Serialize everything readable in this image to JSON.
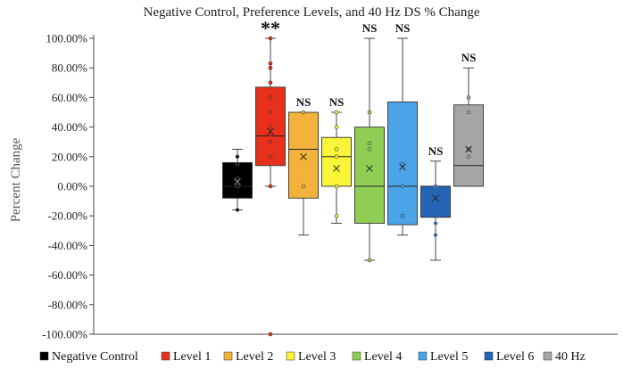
{
  "chart_data": {
    "type": "box",
    "title": "Negative Control, Preference Levels, and 40 Hz DS % Change",
    "ylabel": "Percent Change",
    "xlabel": "",
    "ylim": [
      -100,
      100
    ],
    "yticks": [
      100,
      80,
      60,
      40,
      20,
      0,
      -20,
      -40,
      -60,
      -80,
      -100
    ],
    "ytick_labels": [
      "100.00%",
      "80.00%",
      "60.00%",
      "40.00%",
      "20.00%",
      "0.00%",
      "-20.00%",
      "-40.00%",
      "-60.00%",
      "-80.00%",
      "-100.00%"
    ],
    "legend_position": "bottom",
    "gridlines": false,
    "series": [
      {
        "name": "Negative Control",
        "color": "#000000",
        "whisker_low": -16,
        "q1": -8,
        "median": 0,
        "q3": 16,
        "whisker_high": 25,
        "mean": 3,
        "points": [
          20,
          15,
          5,
          0,
          -16
        ],
        "significance": ""
      },
      {
        "name": "Level 1",
        "color": "#e8301c",
        "whisker_low": 0,
        "q1": 14,
        "median": 34,
        "q3": 67,
        "whisker_high": 100,
        "mean": 37,
        "points": [
          100,
          83,
          80,
          70,
          60,
          50,
          40,
          35,
          30,
          20,
          0,
          -100
        ],
        "significance": "**"
      },
      {
        "name": "Level 2",
        "color": "#f2b23c",
        "whisker_low": -33,
        "q1": -8,
        "median": 25,
        "q3": 50,
        "whisker_high": 50,
        "mean": 20,
        "points": [
          50,
          0
        ],
        "significance": "NS"
      },
      {
        "name": "Level 3",
        "color": "#fbf53a",
        "whisker_low": -25,
        "q1": 0,
        "median": 20,
        "q3": 33,
        "whisker_high": 50,
        "mean": 12,
        "points": [
          50,
          40,
          25,
          20,
          0,
          -20
        ],
        "significance": "NS"
      },
      {
        "name": "Level 4",
        "color": "#8fce55",
        "whisker_low": -50,
        "q1": -25,
        "median": 0,
        "q3": 40,
        "whisker_high": 100,
        "mean": 12,
        "points": [
          50,
          29,
          25,
          -50
        ],
        "significance": "NS"
      },
      {
        "name": "Level 5",
        "color": "#4ba4e8",
        "whisker_low": -33,
        "q1": -26,
        "median": 0,
        "q3": 57,
        "whisker_high": 100,
        "mean": 13,
        "points": [
          15,
          0,
          -20
        ],
        "significance": "NS"
      },
      {
        "name": "Level 6",
        "color": "#2565b5",
        "whisker_low": -50,
        "q1": -21,
        "median": 0,
        "q3": 0,
        "whisker_high": 17,
        "mean": -8,
        "points": [
          0,
          -25,
          -33
        ],
        "significance": "NS"
      },
      {
        "name": "40 Hz",
        "color": "#a6a6a6",
        "whisker_low": 0,
        "q1": 0,
        "median": 14,
        "q3": 55,
        "whisker_high": 80,
        "mean": 25,
        "points": [
          60,
          50,
          25,
          20
        ],
        "significance": "NS"
      }
    ]
  }
}
